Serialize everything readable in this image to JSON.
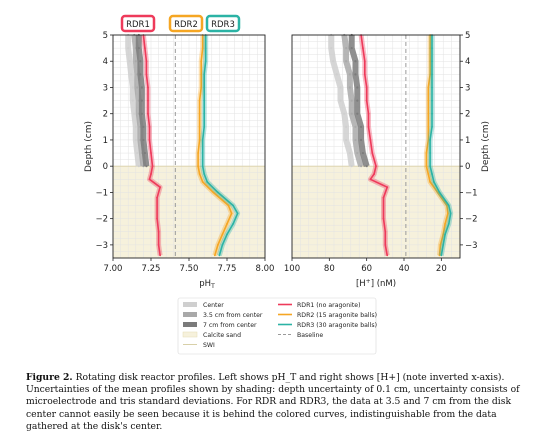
{
  "caption": {
    "label": "Figure 2.",
    "text": "Rotating disk reactor profiles. Left shows pH_T and right shows [H+] (note inverted x-axis). Uncertainties of the mean profiles shown by shading: depth uncertainty of 0.1 cm, uncertainty consists of microelectrode and tris standard deviations. For RDR and RDR3, the data at 3.5 and 7 cm from the disk center cannot easily be seen because it is behind the colored curves, indistinguishable from the data gathered at the disk's center."
  },
  "colors": {
    "rdr1": "#ee3a5a",
    "rdr2": "#f5a623",
    "rdr3": "#2bb3a5",
    "center": "#cfcfcf",
    "mid": "#a9a9a9",
    "far": "#7b7b7b",
    "sand": "#f6f1dc",
    "baseline": "#9a9a9a"
  },
  "chart_data": [
    {
      "id": "left",
      "type": "line",
      "xlabel": "pH_T",
      "ylabel": "Depth (cm)",
      "xlim": [
        7.0,
        8.0
      ],
      "ylim": [
        -3.5,
        5
      ],
      "xticks": [
        "7.00",
        "7.25",
        "7.50",
        "7.75",
        "8.00"
      ],
      "xtick_values": [
        7.0,
        7.25,
        7.5,
        7.75,
        8.0
      ],
      "yticks": [
        5,
        4,
        3,
        2,
        1,
        0,
        -1,
        -2,
        -3
      ],
      "baseline_x": 7.41,
      "series": [
        {
          "key": "rdr1",
          "name": "RDR1",
          "points": [
            [
              7.2,
              5
            ],
            [
              7.21,
              4.5
            ],
            [
              7.22,
              4
            ],
            [
              7.22,
              3.5
            ],
            [
              7.23,
              3
            ],
            [
              7.23,
              2.5
            ],
            [
              7.23,
              2
            ],
            [
              7.24,
              1.5
            ],
            [
              7.24,
              1
            ],
            [
              7.25,
              0.5
            ],
            [
              7.26,
              0
            ],
            [
              7.25,
              -0.3
            ],
            [
              7.24,
              -0.5
            ],
            [
              7.31,
              -0.8
            ],
            [
              7.29,
              -1.2
            ],
            [
              7.29,
              -2
            ],
            [
              7.3,
              -2.5
            ],
            [
              7.3,
              -3
            ],
            [
              7.31,
              -3.4
            ]
          ]
        },
        {
          "key": "rdr2",
          "name": "RDR2",
          "points": [
            [
              7.59,
              5
            ],
            [
              7.59,
              4.5
            ],
            [
              7.58,
              4
            ],
            [
              7.58,
              3.5
            ],
            [
              7.58,
              3
            ],
            [
              7.57,
              2.5
            ],
            [
              7.57,
              2
            ],
            [
              7.57,
              1.5
            ],
            [
              7.57,
              1
            ],
            [
              7.56,
              0.5
            ],
            [
              7.56,
              0
            ],
            [
              7.57,
              -0.3
            ],
            [
              7.59,
              -0.6
            ],
            [
              7.66,
              -1
            ],
            [
              7.76,
              -1.5
            ],
            [
              7.78,
              -1.8
            ],
            [
              7.75,
              -2.2
            ],
            [
              7.72,
              -2.6
            ],
            [
              7.69,
              -3
            ],
            [
              7.67,
              -3.4
            ]
          ]
        },
        {
          "key": "rdr3",
          "name": "RDR3",
          "points": [
            [
              7.61,
              5
            ],
            [
              7.61,
              4.5
            ],
            [
              7.61,
              4
            ],
            [
              7.6,
              3.5
            ],
            [
              7.6,
              3
            ],
            [
              7.6,
              2.5
            ],
            [
              7.6,
              2
            ],
            [
              7.6,
              1.5
            ],
            [
              7.59,
              1
            ],
            [
              7.59,
              0.5
            ],
            [
              7.59,
              0
            ],
            [
              7.6,
              -0.3
            ],
            [
              7.62,
              -0.6
            ],
            [
              7.69,
              -1
            ],
            [
              7.79,
              -1.5
            ],
            [
              7.82,
              -1.8
            ],
            [
              7.79,
              -2.2
            ],
            [
              7.75,
              -2.6
            ],
            [
              7.72,
              -3
            ],
            [
              7.7,
              -3.4
            ]
          ]
        },
        {
          "key": "center",
          "name": "Center",
          "points": [
            [
              7.1,
              5
            ],
            [
              7.1,
              4.5
            ],
            [
              7.11,
              4
            ],
            [
              7.12,
              3.5
            ],
            [
              7.13,
              3
            ],
            [
              7.13,
              2.5
            ],
            [
              7.14,
              2
            ],
            [
              7.15,
              1.5
            ],
            [
              7.15,
              1
            ],
            [
              7.16,
              0.5
            ],
            [
              7.17,
              0
            ]
          ]
        },
        {
          "key": "mid",
          "name": "3.5 cm from center",
          "points": [
            [
              7.14,
              5
            ],
            [
              7.15,
              4.5
            ],
            [
              7.15,
              4
            ],
            [
              7.16,
              3.5
            ],
            [
              7.16,
              3
            ],
            [
              7.17,
              2.5
            ],
            [
              7.17,
              2
            ],
            [
              7.18,
              1.5
            ],
            [
              7.18,
              1
            ],
            [
              7.19,
              0.5
            ],
            [
              7.2,
              0
            ]
          ]
        },
        {
          "key": "far",
          "name": "7 cm from center",
          "points": [
            [
              7.17,
              5
            ],
            [
              7.17,
              4.5
            ],
            [
              7.18,
              4
            ],
            [
              7.18,
              3.5
            ],
            [
              7.19,
              3
            ],
            [
              7.19,
              2.5
            ],
            [
              7.19,
              2
            ],
            [
              7.2,
              1.5
            ],
            [
              7.2,
              1
            ],
            [
              7.21,
              0.5
            ],
            [
              7.22,
              0
            ]
          ]
        }
      ]
    },
    {
      "id": "right",
      "type": "line",
      "xlabel": "[H+] (nM)",
      "ylabel": "Depth (cm)",
      "xlim": [
        100,
        10
      ],
      "ylim": [
        -3.5,
        5
      ],
      "xticks": [
        "100",
        "80",
        "60",
        "40",
        "20"
      ],
      "xtick_values": [
        100,
        80,
        60,
        40,
        20
      ],
      "yticks": [
        5,
        4,
        3,
        2,
        1,
        0,
        -1,
        -2,
        -3
      ],
      "baseline_x": 39,
      "series": [
        {
          "key": "rdr1",
          "name": "RDR1",
          "points": [
            [
              63,
              5
            ],
            [
              62,
              4.5
            ],
            [
              61,
              4
            ],
            [
              61,
              3.5
            ],
            [
              60,
              3
            ],
            [
              60,
              2.5
            ],
            [
              59,
              2
            ],
            [
              59,
              1.5
            ],
            [
              58,
              1
            ],
            [
              57,
              0.5
            ],
            [
              55,
              0
            ],
            [
              56,
              -0.3
            ],
            [
              58,
              -0.5
            ],
            [
              49,
              -0.8
            ],
            [
              51,
              -1.2
            ],
            [
              51,
              -2
            ],
            [
              50,
              -2.5
            ],
            [
              50,
              -3
            ],
            [
              49,
              -3.4
            ]
          ]
        },
        {
          "key": "rdr2",
          "name": "RDR2",
          "points": [
            [
              26,
              5
            ],
            [
              26,
              4.5
            ],
            [
              26,
              4
            ],
            [
              26,
              3.5
            ],
            [
              27,
              3
            ],
            [
              27,
              2.5
            ],
            [
              27,
              2
            ],
            [
              27,
              1.5
            ],
            [
              27,
              1
            ],
            [
              28,
              0.5
            ],
            [
              28,
              0
            ],
            [
              27,
              -0.3
            ],
            [
              26,
              -0.6
            ],
            [
              22,
              -1
            ],
            [
              17,
              -1.5
            ],
            [
              16.5,
              -1.8
            ],
            [
              18,
              -2.2
            ],
            [
              19,
              -2.6
            ],
            [
              20.5,
              -3
            ],
            [
              21,
              -3.4
            ]
          ]
        },
        {
          "key": "rdr3",
          "name": "RDR3",
          "points": [
            [
              25,
              5
            ],
            [
              25,
              4.5
            ],
            [
              25,
              4
            ],
            [
              25,
              3.5
            ],
            [
              25,
              3
            ],
            [
              25,
              2.5
            ],
            [
              25,
              2
            ],
            [
              25,
              1.5
            ],
            [
              26,
              1
            ],
            [
              26,
              0.5
            ],
            [
              26,
              0
            ],
            [
              25,
              -0.3
            ],
            [
              24,
              -0.6
            ],
            [
              21,
              -1
            ],
            [
              16,
              -1.5
            ],
            [
              15,
              -1.8
            ],
            [
              16,
              -2.2
            ],
            [
              18,
              -2.6
            ],
            [
              19,
              -3
            ],
            [
              20,
              -3.4
            ]
          ]
        },
        {
          "key": "center",
          "name": "Center",
          "points": [
            [
              79,
              5
            ],
            [
              79,
              4.5
            ],
            [
              78,
              4
            ],
            [
              76,
              3.5
            ],
            [
              74,
              3
            ],
            [
              74,
              2.5
            ],
            [
              72,
              2
            ],
            [
              71,
              1.5
            ],
            [
              71,
              1
            ],
            [
              69,
              0.5
            ],
            [
              68,
              0
            ]
          ]
        },
        {
          "key": "mid",
          "name": "3.5 cm from center",
          "points": [
            [
              72,
              5
            ],
            [
              71,
              4.5
            ],
            [
              71,
              4
            ],
            [
              69,
              3.5
            ],
            [
              69,
              3
            ],
            [
              68,
              2.5
            ],
            [
              68,
              2
            ],
            [
              66,
              1.5
            ],
            [
              66,
              1
            ],
            [
              65,
              0.5
            ],
            [
              63,
              0
            ]
          ]
        },
        {
          "key": "far",
          "name": "7 cm from center",
          "points": [
            [
              68,
              5
            ],
            [
              68,
              4.5
            ],
            [
              66,
              4
            ],
            [
              66,
              3.5
            ],
            [
              65,
              3
            ],
            [
              65,
              2.5
            ],
            [
              65,
              2
            ],
            [
              63,
              1.5
            ],
            [
              63,
              1
            ],
            [
              62,
              0.5
            ],
            [
              60,
              0
            ]
          ]
        }
      ]
    }
  ],
  "tags": [
    {
      "key": "rdr1",
      "label": "RDR1"
    },
    {
      "key": "rdr2",
      "label": "RDR2"
    },
    {
      "key": "rdr3",
      "label": "RDR3"
    }
  ],
  "legend_left": [
    {
      "label": "Center",
      "key": "center",
      "kind": "band"
    },
    {
      "label": "3.5 cm from center",
      "key": "mid",
      "kind": "band"
    },
    {
      "label": "7 cm from center",
      "key": "far",
      "kind": "band"
    },
    {
      "label": "Calcite sand",
      "key": "sand",
      "kind": "box"
    },
    {
      "label": "SWI",
      "key": "swi",
      "kind": "line"
    }
  ],
  "legend_right": [
    {
      "label": "RDR1 (no aragonite)",
      "key": "rdr1",
      "kind": "line"
    },
    {
      "label": "RDR2 (15 aragonite balls)",
      "key": "rdr2",
      "kind": "line"
    },
    {
      "label": "RDR3 (30 aragonite balls)",
      "key": "rdr3",
      "kind": "line"
    },
    {
      "label": "Baseline",
      "key": "baseline",
      "kind": "dash"
    }
  ]
}
